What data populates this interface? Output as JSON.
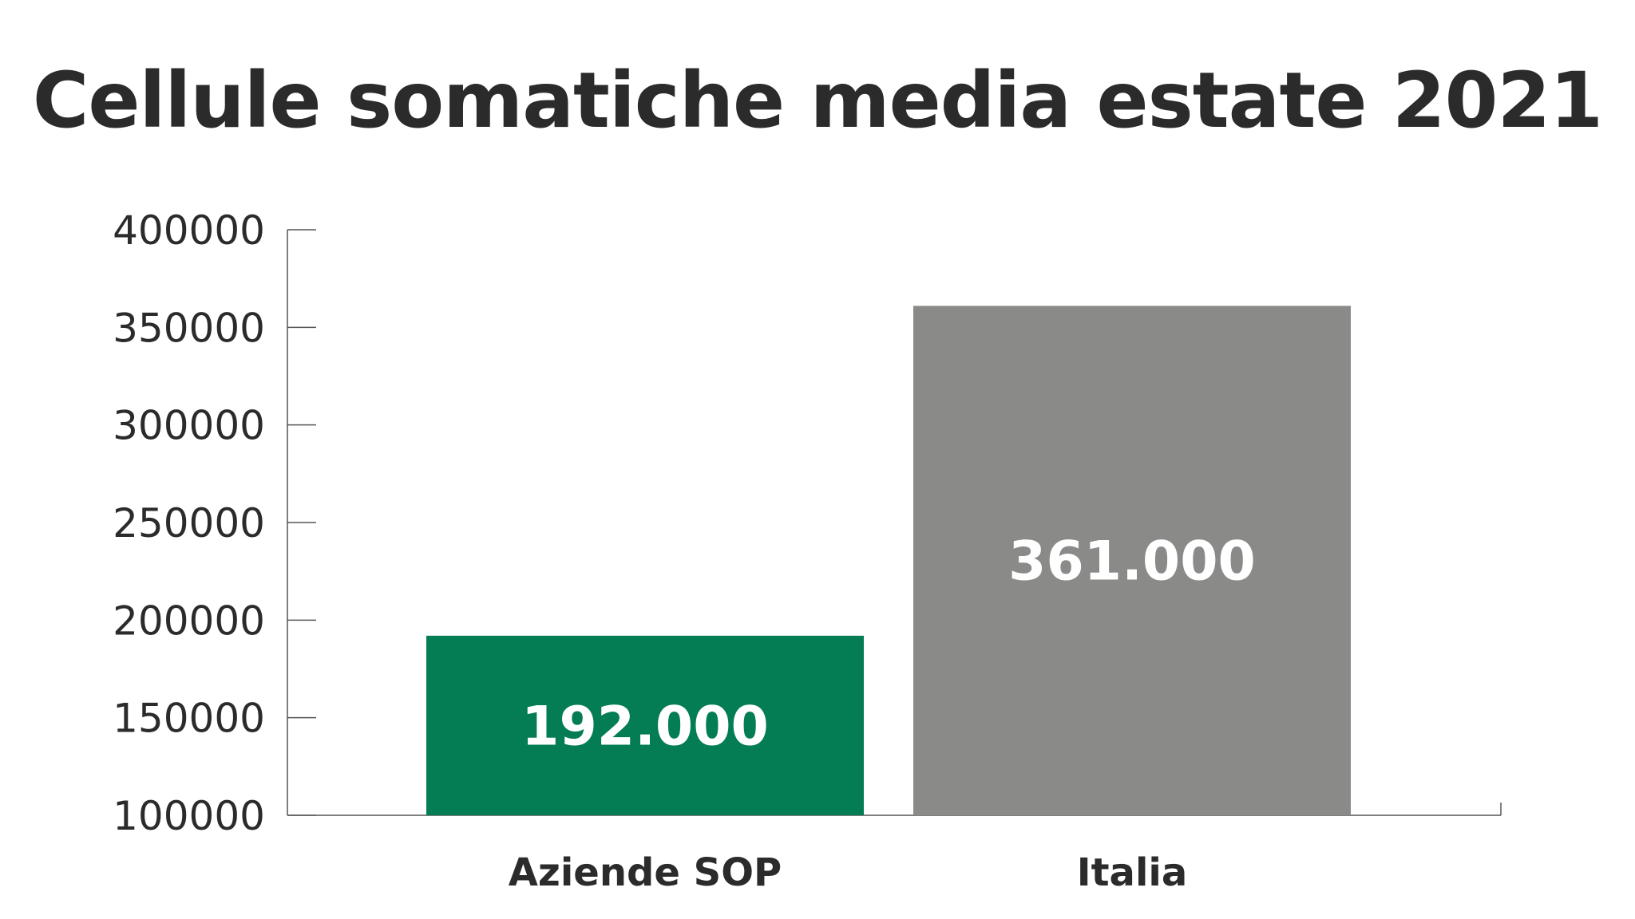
{
  "chart_data": {
    "type": "bar",
    "title": "Cellule somatiche media estate 2021",
    "categories": [
      "Aziende SOP",
      "Italia"
    ],
    "values": [
      192000,
      361000
    ],
    "data_labels": [
      "192.000",
      "361.000"
    ],
    "bar_colors": [
      "#047d54",
      "#8a8a88"
    ],
    "ylim": [
      100000,
      400000
    ],
    "yticks": [
      100000,
      150000,
      200000,
      250000,
      300000,
      350000,
      400000
    ],
    "ytick_labels": [
      "100000",
      "150000",
      "200000",
      "250000",
      "300000",
      "350000",
      "400000"
    ],
    "xlabel": "",
    "ylabel": "",
    "grid": false,
    "legend": false
  }
}
